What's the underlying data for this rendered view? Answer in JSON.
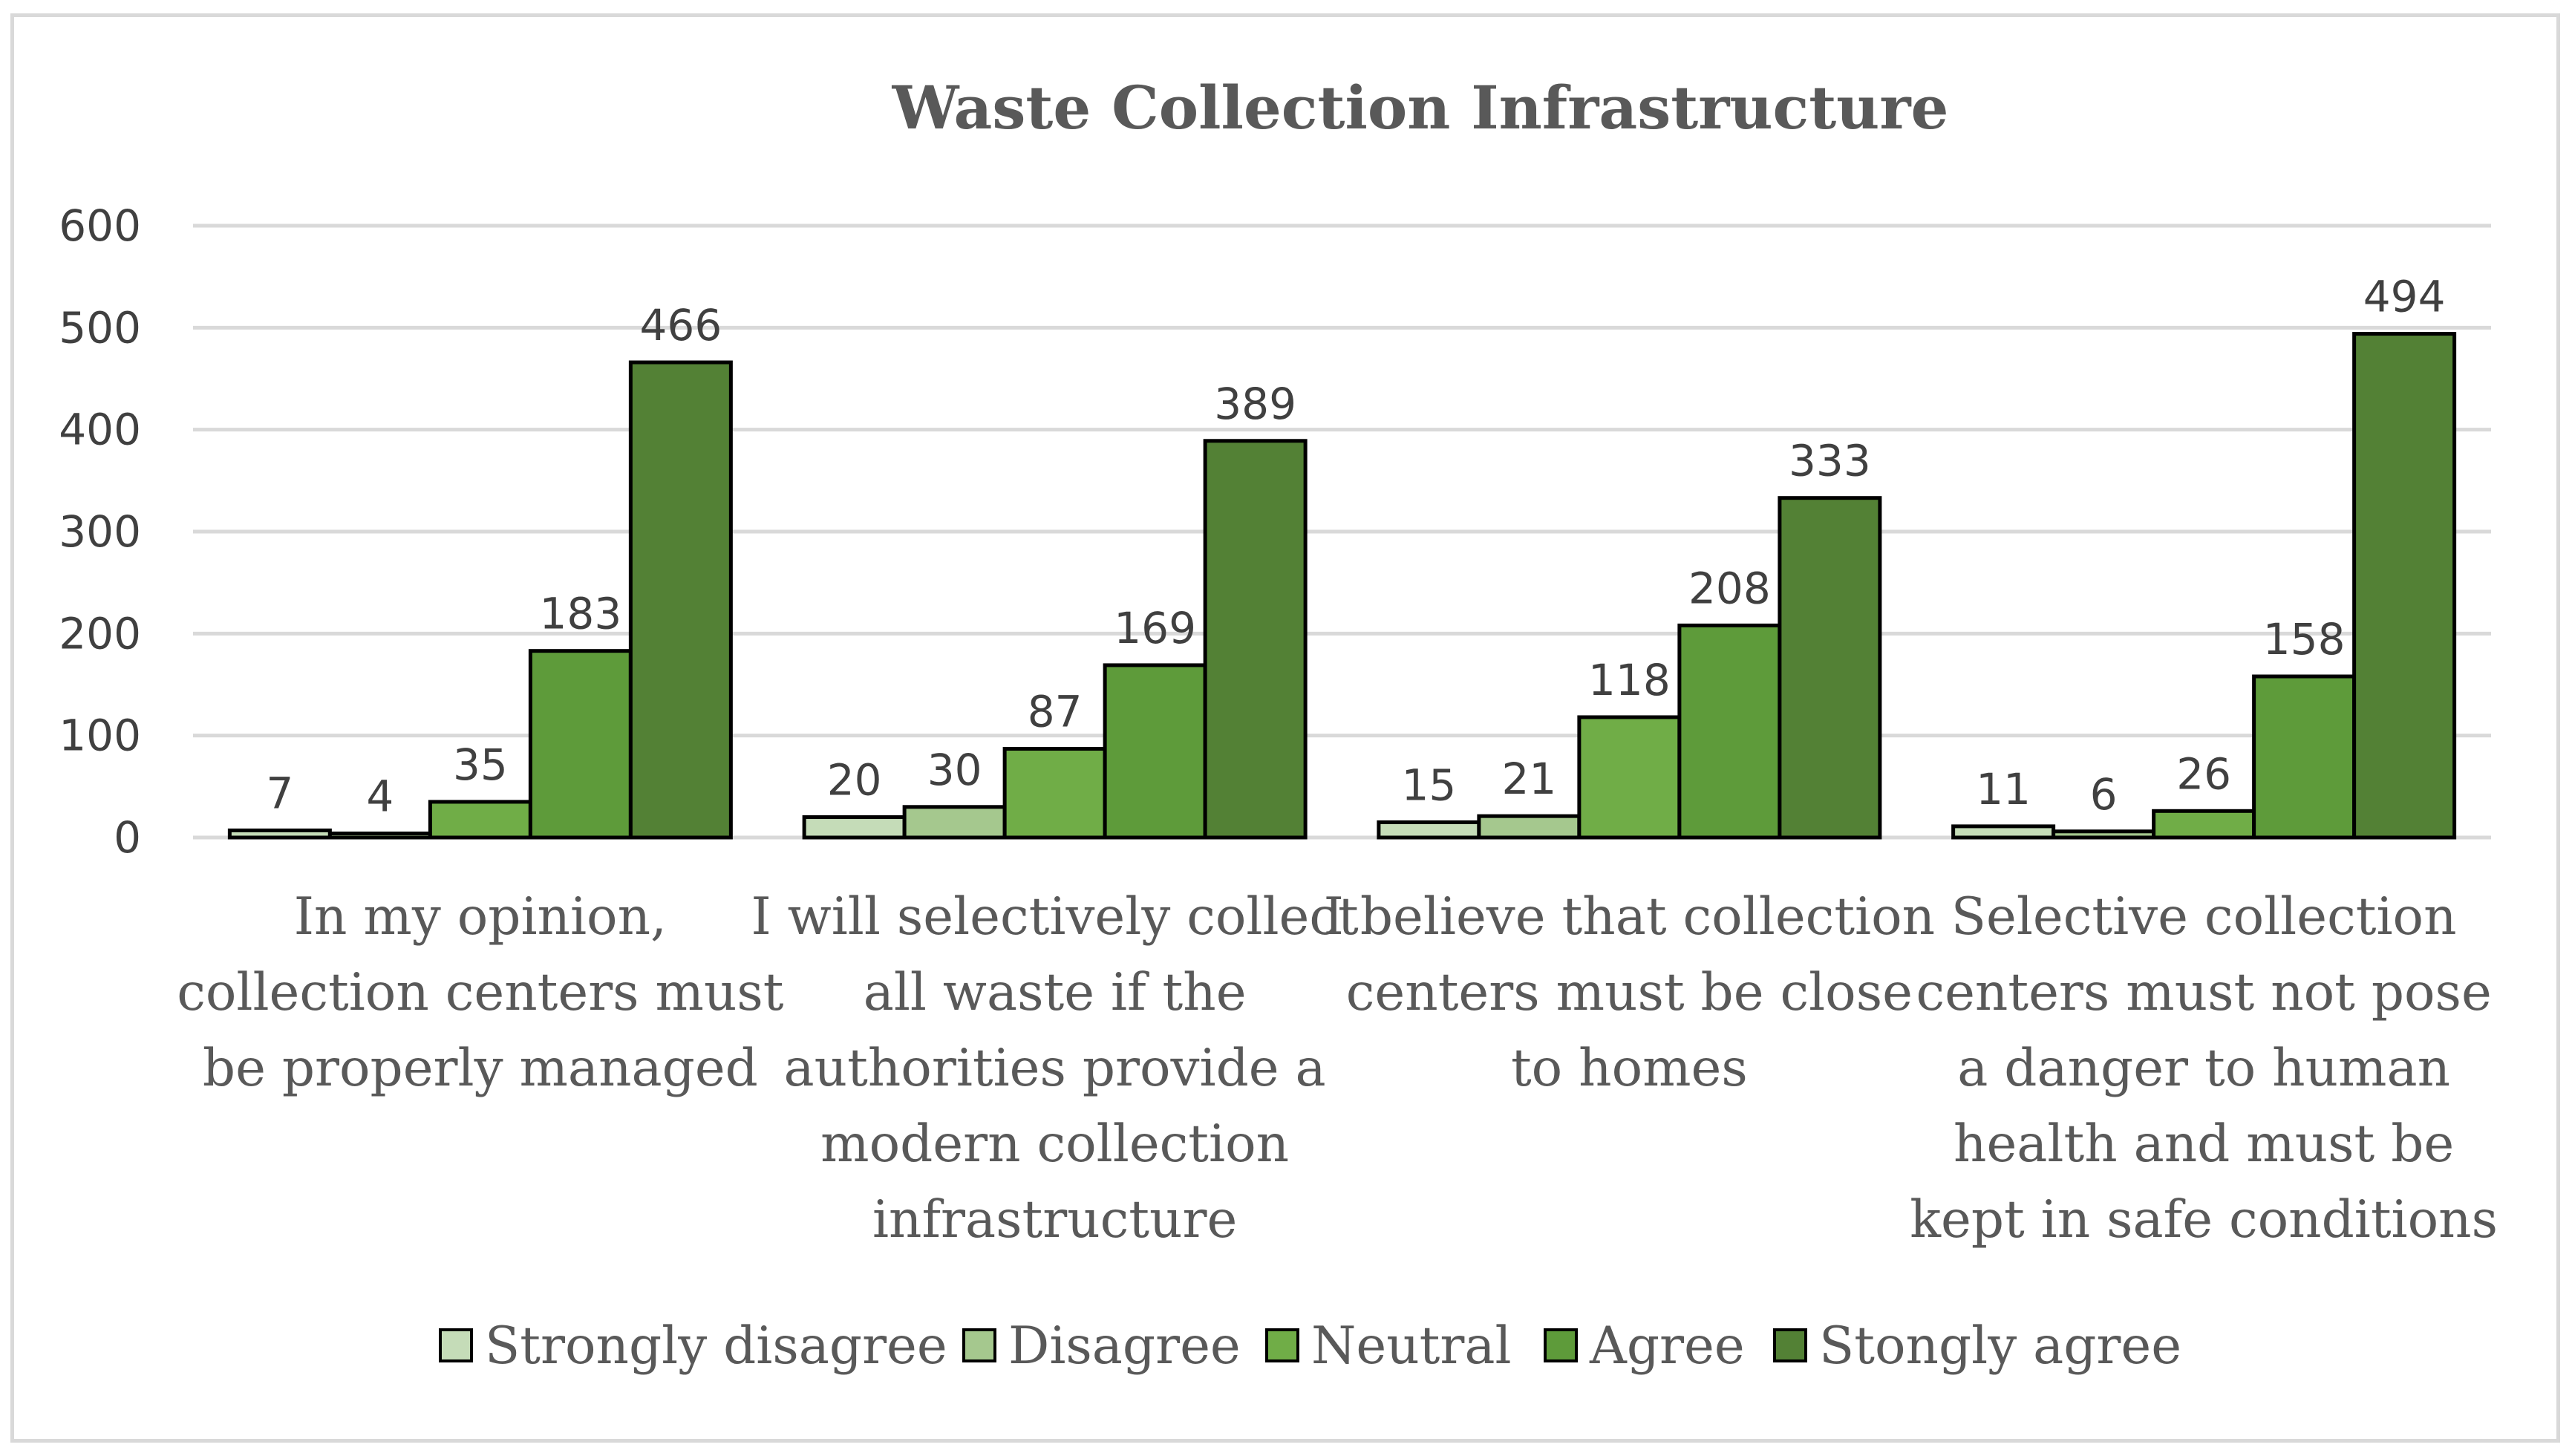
{
  "chart_data": {
    "type": "bar",
    "title": "Waste Collection Infrastructure",
    "ylim": [
      0,
      600
    ],
    "yticks": [
      0,
      100,
      200,
      300,
      400,
      500,
      600
    ],
    "grid": true,
    "legend_position": "bottom",
    "categories": [
      [
        "In my opinion,",
        "collection centers must",
        "be properly managed"
      ],
      [
        "I will selectively collect",
        "all waste if the",
        "authorities provide a",
        "modern collection",
        "infrastructure"
      ],
      [
        "I believe that collection",
        "centers must be close",
        "to homes"
      ],
      [
        "Selective collection",
        "centers must not pose",
        "a danger to human",
        "health and must be",
        "kept in safe conditions"
      ]
    ],
    "series": [
      {
        "name": "Strongly disagree",
        "color": "#c5dcb8",
        "values": [
          7,
          20,
          15,
          11
        ]
      },
      {
        "name": "Disagree",
        "color": "#a5c88e",
        "values": [
          4,
          30,
          21,
          6
        ]
      },
      {
        "name": "Neutral",
        "color": "#70ad47",
        "values": [
          35,
          87,
          118,
          26
        ]
      },
      {
        "name": "Agree",
        "color": "#5e9b3a",
        "values": [
          183,
          169,
          208,
          158
        ]
      },
      {
        "name": "Stongly agree",
        "color": "#538135",
        "values": [
          466,
          389,
          333,
          494
        ]
      }
    ]
  }
}
